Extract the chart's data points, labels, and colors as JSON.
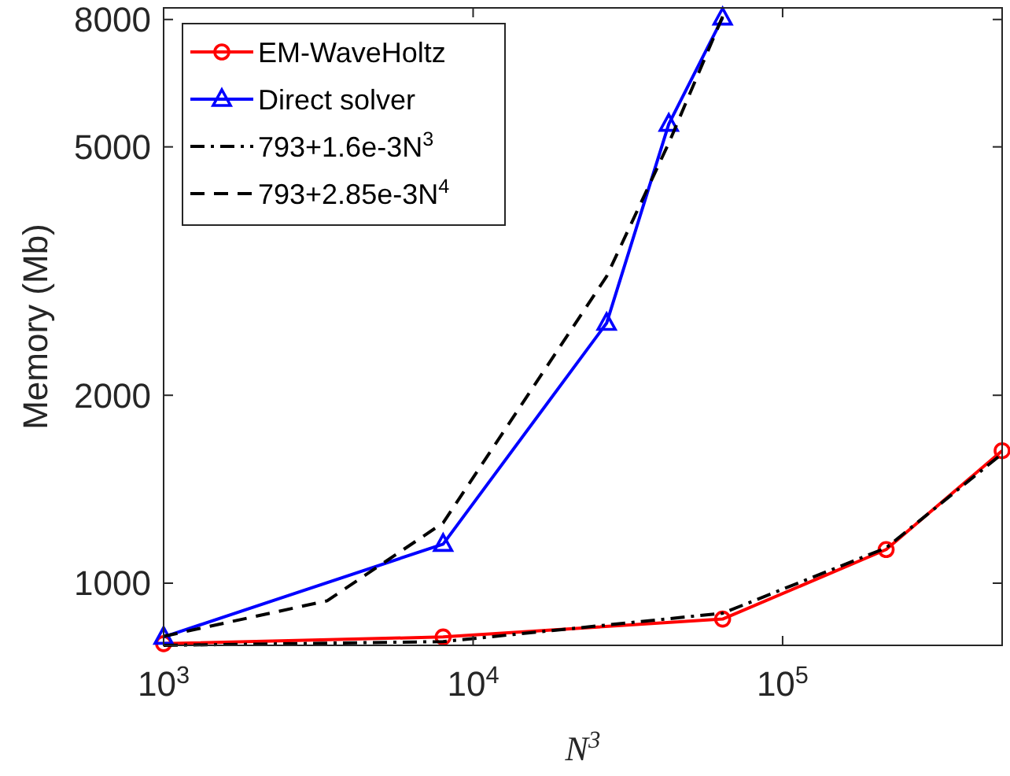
{
  "chart_data": {
    "type": "line",
    "xlabel": "N$^{3}$",
    "ylabel": "Memory (Mb)",
    "log": "xy",
    "grid": false,
    "legend": "top left",
    "xlim": [
      1000,
      512000
    ],
    "xticks": [
      {
        "value": 1000,
        "label": "10$^{3}$"
      },
      {
        "value": 10000,
        "label": "10$^{4}$"
      },
      {
        "value": 100000,
        "label": "10$^{5}$"
      }
    ],
    "ylim": [
      795,
      8350
    ],
    "yticks": [
      1000,
      2000,
      5000,
      8000
    ],
    "series": [
      {
        "name": "EM-WaveHoltz",
        "color": "#ff0000",
        "marker": "circle",
        "line_style": "solid",
        "x": [
          1000,
          8000,
          64000,
          216000,
          512000
        ],
        "values": [
          800,
          820,
          876,
          1132,
          1630
        ]
      },
      {
        "name": "Direct solver",
        "color": "#0000ff",
        "marker": "triangle",
        "line_style": "solid",
        "x": [
          1000,
          8000,
          27000,
          42875,
          64000
        ],
        "values": [
          820,
          1155,
          2610,
          5440,
          8050
        ]
      },
      {
        "name": "793+1.6e-3N$^{3}$",
        "color": "#000000",
        "marker": "none",
        "line_style": "dashdot",
        "x": [
          1000,
          8000,
          64000,
          216000,
          512000
        ],
        "values": [
          795,
          806,
          895,
          1139,
          1612
        ]
      },
      {
        "name": "793+2.85e-3N$^{4}$",
        "color": "#000000",
        "marker": "none",
        "line_style": "dashed",
        "x": [
          1000,
          3375,
          8000,
          27000,
          42875,
          64000
        ],
        "values": [
          822,
          937,
          1249,
          3101,
          5070,
          8089
        ]
      }
    ]
  }
}
